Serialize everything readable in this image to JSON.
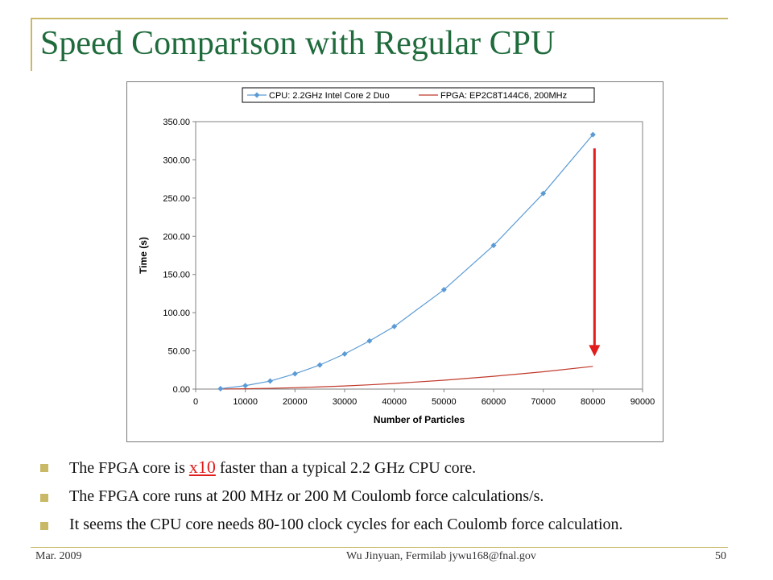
{
  "slide": {
    "title": "Speed Comparison with Regular CPU",
    "bullets": [
      {
        "pre": "The FPGA core is ",
        "highlight": "x10",
        "post": " faster than a typical 2.2 GHz CPU core."
      },
      {
        "text": "The FPGA core runs at 200 MHz or 200 M Coulomb force calculations/s."
      },
      {
        "text": "It seems the CPU core needs 80-100 clock cycles for each Coulomb force calculation."
      }
    ],
    "footer": {
      "date": "Mar. 2009",
      "author": "Wu Jinyuan, Fermilab jywu168@fnal.gov",
      "page": "50"
    }
  },
  "colors": {
    "title": "#1f6b3c",
    "rule": "#c9b865",
    "highlight": "#e01c1c",
    "cpu_series": "#5b9bd5",
    "fpga_series": "#c0392b",
    "arrow": "#e01c1c"
  },
  "chart_data": {
    "type": "line",
    "xlabel": "Number of Particles",
    "ylabel": "Time (s)",
    "xlim": [
      0,
      90000
    ],
    "ylim": [
      0,
      350
    ],
    "xticks": [
      "0",
      "10000",
      "20000",
      "30000",
      "40000",
      "50000",
      "60000",
      "70000",
      "80000",
      "90000"
    ],
    "xtick_values": [
      0,
      10000,
      20000,
      30000,
      40000,
      50000,
      60000,
      70000,
      80000,
      90000
    ],
    "yticks": [
      "0.00",
      "50.00",
      "100.00",
      "150.00",
      "200.00",
      "250.00",
      "300.00",
      "350.00"
    ],
    "ytick_values": [
      0,
      50,
      100,
      150,
      200,
      250,
      300,
      350
    ],
    "grid": false,
    "legend_position": "top",
    "series": [
      {
        "name": "CPU: 2.2GHz Intel Core 2 Duo",
        "marker": "diamond",
        "x": [
          5000,
          10000,
          15000,
          20000,
          25000,
          30000,
          35000,
          40000,
          50000,
          60000,
          70000,
          80000
        ],
        "y": [
          0.5,
          4.5,
          10.5,
          20,
          31.5,
          46,
          63,
          82,
          130,
          188,
          256,
          333
        ]
      },
      {
        "name": "FPGA: EP2C8T144C6, 200MHz",
        "marker": "none",
        "x": [
          5000,
          10000,
          15000,
          20000,
          25000,
          30000,
          35000,
          40000,
          50000,
          60000,
          70000,
          80000
        ],
        "y": [
          0.05,
          0.4,
          1.0,
          1.8,
          2.9,
          4.1,
          5.6,
          7.4,
          11.6,
          16.7,
          22.7,
          29.7
        ]
      }
    ],
    "annotation": {
      "type": "arrow",
      "x": 80000,
      "y_from": 315,
      "y_to": 45
    }
  }
}
